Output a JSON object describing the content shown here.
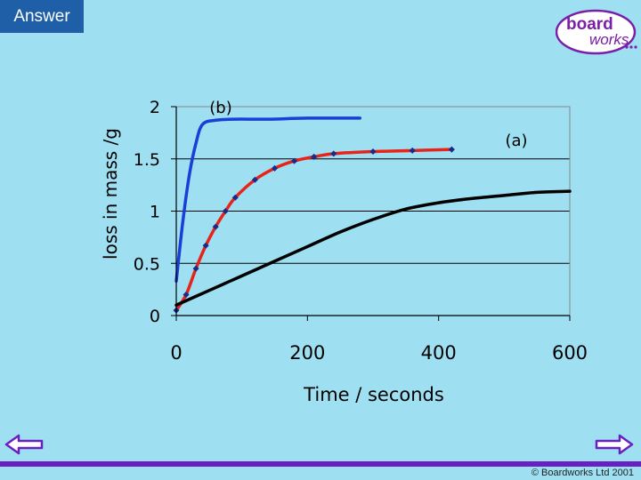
{
  "answer_label": "Answer",
  "logo": {
    "line1": "board",
    "line2": "works"
  },
  "copyright": "© Boardworks Ltd 2001",
  "colors": {
    "background": "#9ee0f2",
    "button": "#1f5fa8",
    "accent": "#6a1fc2"
  },
  "chart_data": {
    "type": "line",
    "title": "",
    "xlabel": "Time / seconds",
    "ylabel": "loss in mass /g",
    "xlim": [
      0,
      600
    ],
    "ylim": [
      0,
      2
    ],
    "xticks": [
      0,
      200,
      400,
      600
    ],
    "yticks": [
      0,
      0.5,
      1,
      1.5,
      2
    ],
    "ytick_labels": [
      "0",
      "0.5",
      "1",
      "1.5",
      "2"
    ],
    "grid": "horizontal",
    "series": [
      {
        "name": "(b)",
        "color": "#1a3fd6",
        "markers": false,
        "x": [
          0,
          10,
          20,
          30,
          40,
          60,
          90,
          140,
          200,
          280
        ],
        "y": [
          0.33,
          0.9,
          1.35,
          1.65,
          1.83,
          1.87,
          1.88,
          1.88,
          1.89,
          1.89
        ]
      },
      {
        "name": "",
        "color": "#e8231a",
        "markers": true,
        "x": [
          0,
          15,
          30,
          45,
          60,
          75,
          90,
          120,
          150,
          180,
          210,
          240,
          300,
          360,
          420
        ],
        "y": [
          0.05,
          0.2,
          0.45,
          0.67,
          0.85,
          1.0,
          1.13,
          1.3,
          1.41,
          1.48,
          1.52,
          1.55,
          1.57,
          1.58,
          1.59
        ]
      },
      {
        "name": "(a)",
        "color": "#000000",
        "markers": false,
        "x": [
          0,
          50,
          100,
          150,
          200,
          250,
          300,
          350,
          400,
          450,
          500,
          550,
          600
        ],
        "y": [
          0.1,
          0.24,
          0.38,
          0.52,
          0.66,
          0.8,
          0.92,
          1.02,
          1.08,
          1.12,
          1.15,
          1.18,
          1.19
        ]
      }
    ]
  }
}
